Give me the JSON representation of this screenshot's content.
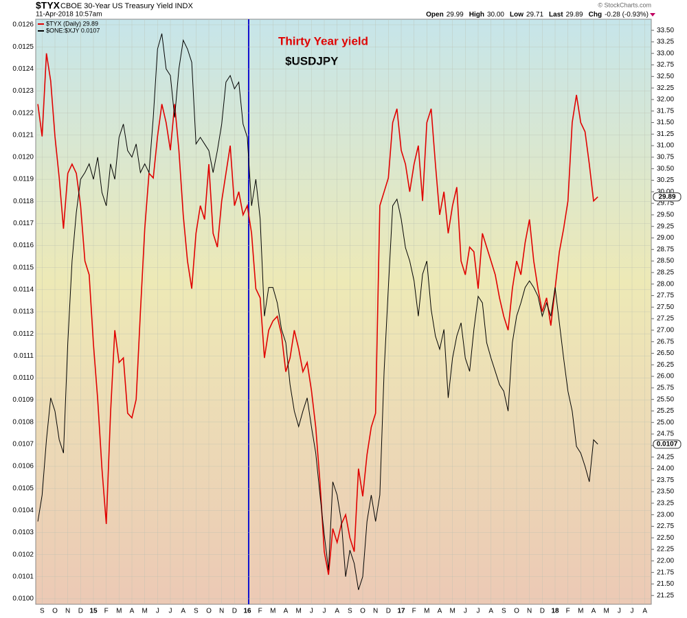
{
  "chart_data": {
    "type": "line",
    "symbol": "$TYX",
    "title": "CBOE 30-Year US Treasury Yield INDX",
    "date": "11-Apr-2018 10:57am",
    "source": "© StockCharts.com",
    "quote": [
      {
        "label": "Open",
        "value": "29.99"
      },
      {
        "label": "High",
        "value": "30.00"
      },
      {
        "label": "Low",
        "value": "29.71"
      },
      {
        "label": "Last",
        "value": "29.89"
      },
      {
        "label": "Chg",
        "value": "-0.28 (-0.93%)"
      }
    ],
    "annotations": [
      {
        "text": "Thirty Year yield",
        "color": "#e00000"
      },
      {
        "text": "$USDJPY",
        "color": "#000000"
      }
    ],
    "categories": [
      null,
      "S",
      null,
      null,
      "O",
      null,
      null,
      "N",
      null,
      null,
      "D",
      null,
      null,
      "15",
      null,
      null,
      "F",
      null,
      null,
      "M",
      null,
      null,
      "A",
      null,
      null,
      "M",
      null,
      null,
      "J",
      null,
      null,
      "J",
      null,
      null,
      "A",
      null,
      null,
      "S",
      null,
      null,
      "O",
      null,
      null,
      "N",
      null,
      null,
      "D",
      null,
      null,
      "16",
      null,
      null,
      "F",
      null,
      null,
      "M",
      null,
      null,
      "A",
      null,
      null,
      "M",
      null,
      null,
      "J",
      null,
      null,
      "J",
      null,
      null,
      "A",
      null,
      null,
      "S",
      null,
      null,
      "O",
      null,
      null,
      "N",
      null,
      null,
      "D",
      null,
      null,
      "17",
      null,
      null,
      "F",
      null,
      null,
      "M",
      null,
      null,
      "A",
      null,
      null,
      "M",
      null,
      null,
      "J",
      null,
      null,
      "J",
      null,
      null,
      "A",
      null,
      null,
      "S",
      null,
      null,
      "O",
      null,
      null,
      "N",
      null,
      null,
      "D",
      null,
      null,
      "18",
      null,
      null,
      "F",
      null,
      null,
      "M",
      null,
      null,
      "A",
      null,
      null,
      "M",
      null,
      null,
      "J",
      null,
      null,
      "J",
      null,
      null,
      "A",
      null
    ],
    "series": [
      {
        "name": "$TYX (Daily) 29.89",
        "color": "#e00000",
        "axis": "y2",
        "last_label": "29.89",
        "values": [
          31.9,
          31.2,
          33.0,
          32.4,
          31.2,
          30.3,
          29.2,
          30.4,
          30.6,
          30.4,
          29.7,
          28.5,
          28.2,
          26.7,
          25.5,
          24.0,
          22.8,
          25.2,
          27.0,
          26.3,
          26.4,
          25.2,
          25.1,
          25.5,
          27.4,
          29.2,
          30.4,
          30.3,
          31.2,
          31.9,
          31.5,
          30.9,
          31.9,
          30.9,
          29.5,
          28.5,
          27.9,
          29.1,
          29.7,
          29.4,
          30.6,
          29.1,
          28.8,
          29.8,
          30.4,
          31.0,
          29.7,
          30.0,
          29.5,
          29.7,
          29.1,
          27.9,
          27.7,
          26.4,
          27.0,
          27.2,
          27.3,
          26.9,
          26.1,
          26.4,
          27.0,
          26.6,
          26.1,
          26.3,
          25.7,
          24.9,
          23.7,
          22.2,
          21.7,
          22.7,
          22.4,
          22.8,
          23.0,
          22.5,
          22.2,
          24.0,
          23.4,
          24.3,
          24.9,
          25.2,
          29.7,
          30.0,
          30.3,
          31.5,
          31.8,
          30.9,
          30.6,
          30.0,
          30.6,
          31.0,
          29.8,
          31.5,
          31.8,
          30.6,
          29.5,
          30.0,
          29.1,
          29.7,
          30.1,
          28.5,
          28.2,
          28.8,
          28.7,
          27.9,
          29.1,
          28.8,
          28.5,
          28.2,
          27.7,
          27.3,
          27.0,
          27.9,
          28.5,
          28.2,
          28.9,
          29.4,
          28.5,
          27.9,
          27.4,
          27.7,
          27.1,
          27.9,
          28.7,
          29.2,
          29.8,
          31.5,
          32.1,
          31.5,
          31.3,
          30.6,
          29.8,
          29.89,
          null,
          null,
          null,
          null,
          null,
          null,
          null,
          null,
          null,
          null,
          null,
          null
        ]
      },
      {
        "name": "$ONE:$XJY 0.0107",
        "color": "#000000",
        "axis": "y",
        "last_label": "0.0107",
        "values": [
          0.01035,
          0.01047,
          0.01072,
          0.01091,
          0.01085,
          0.01072,
          0.01066,
          0.01116,
          0.01153,
          0.01175,
          0.0119,
          0.01193,
          0.01197,
          0.0119,
          0.012,
          0.01184,
          0.01178,
          0.01197,
          0.0119,
          0.01209,
          0.01215,
          0.01203,
          0.012,
          0.01206,
          0.01193,
          0.01197,
          0.01193,
          0.01218,
          0.01249,
          0.01256,
          0.0124,
          0.01237,
          0.01218,
          0.0124,
          0.01253,
          0.01249,
          0.01243,
          0.01206,
          0.01209,
          0.01206,
          0.01203,
          0.01193,
          0.01203,
          0.01215,
          0.01234,
          0.01237,
          0.01231,
          0.01234,
          0.01215,
          0.01209,
          0.01178,
          0.0119,
          0.01172,
          0.01128,
          0.01141,
          0.01141,
          0.01134,
          0.01122,
          0.01116,
          0.01097,
          0.01085,
          0.01078,
          0.01085,
          0.01091,
          0.01078,
          0.01066,
          0.01047,
          0.01029,
          0.01013,
          0.01053,
          0.01047,
          0.01035,
          0.0101,
          0.01022,
          0.01016,
          0.01004,
          0.0101,
          0.01035,
          0.01047,
          0.01035,
          0.01047,
          0.01103,
          0.01141,
          0.01178,
          0.01181,
          0.01172,
          0.01159,
          0.01153,
          0.01144,
          0.01128,
          0.01147,
          0.01153,
          0.01131,
          0.01119,
          0.01113,
          0.01122,
          0.01091,
          0.01109,
          0.01119,
          0.01125,
          0.01109,
          0.01103,
          0.01122,
          0.01137,
          0.01134,
          0.01116,
          0.01109,
          0.01103,
          0.01097,
          0.01094,
          0.01085,
          0.01116,
          0.01128,
          0.01134,
          0.01141,
          0.01144,
          0.01141,
          0.01137,
          0.01128,
          0.01134,
          0.01128,
          0.01141,
          0.01125,
          0.01109,
          0.01094,
          0.01085,
          0.01069,
          0.01066,
          0.0106,
          0.01053,
          0.01072,
          0.0107,
          null,
          null,
          null,
          null,
          null,
          null,
          null,
          null,
          null,
          null,
          null,
          null
        ]
      }
    ],
    "ylim": [
      0.009975,
      0.012625
    ],
    "yticks": [
      {
        "value": 0.01,
        "label": "0.0100"
      },
      {
        "value": 0.0101,
        "label": "0.0101"
      },
      {
        "value": 0.0102,
        "label": "0.0102"
      },
      {
        "value": 0.0103,
        "label": "0.0103"
      },
      {
        "value": 0.0104,
        "label": "0.0104"
      },
      {
        "value": 0.0105,
        "label": "0.0105"
      },
      {
        "value": 0.0106,
        "label": "0.0106"
      },
      {
        "value": 0.0107,
        "label": "0.0107"
      },
      {
        "value": 0.0108,
        "label": "0.0108"
      },
      {
        "value": 0.0109,
        "label": "0.0109"
      },
      {
        "value": 0.011,
        "label": "0.0110"
      },
      {
        "value": 0.0111,
        "label": "0.0111"
      },
      {
        "value": 0.0112,
        "label": "0.0112"
      },
      {
        "value": 0.0113,
        "label": "0.0113"
      },
      {
        "value": 0.0114,
        "label": "0.0114"
      },
      {
        "value": 0.0115,
        "label": "0.0115"
      },
      {
        "value": 0.0116,
        "label": "0.0116"
      },
      {
        "value": 0.0117,
        "label": "0.0117"
      },
      {
        "value": 0.0118,
        "label": "0.0118"
      },
      {
        "value": 0.0119,
        "label": "0.0119"
      },
      {
        "value": 0.012,
        "label": "0.0120"
      },
      {
        "value": 0.0121,
        "label": "0.0121"
      },
      {
        "value": 0.0122,
        "label": "0.0122"
      },
      {
        "value": 0.0123,
        "label": "0.0123"
      },
      {
        "value": 0.0124,
        "label": "0.0124"
      },
      {
        "value": 0.0125,
        "label": "0.0125"
      },
      {
        "value": 0.0126,
        "label": "0.0126"
      }
    ],
    "y2lim": [
      21.06,
      33.74
    ],
    "y2ticks": [
      21.25,
      {
        "value": 21.5,
        "label": "21.50"
      },
      21.75,
      {
        "value": 22,
        "label": "22.00"
      },
      22.25,
      {
        "value": 22.5,
        "label": "22.50"
      },
      22.75,
      {
        "value": 23,
        "label": "23.00"
      },
      23.25,
      {
        "value": 23.5,
        "label": "23.50"
      },
      23.75,
      {
        "value": 24,
        "label": "24.00"
      },
      24.25,
      {
        "value": 24.5,
        "label": "24.50"
      },
      24.75,
      {
        "value": 25,
        "label": "25.00"
      },
      25.25,
      {
        "value": 25.5,
        "label": "25.50"
      },
      25.75,
      {
        "value": 26,
        "label": "26.00"
      },
      26.25,
      {
        "value": 26.5,
        "label": "26.50"
      },
      26.75,
      {
        "value": 27,
        "label": "27.00"
      },
      27.25,
      {
        "value": 27.5,
        "label": "27.50"
      },
      27.75,
      {
        "value": 28,
        "label": "28.00"
      },
      28.25,
      {
        "value": 28.5,
        "label": "28.50"
      },
      28.75,
      {
        "value": 29,
        "label": "29.00"
      },
      29.25,
      {
        "value": 29.5,
        "label": "29.50"
      },
      29.75,
      {
        "value": 30,
        "label": "30.00"
      },
      30.25,
      {
        "value": 30.5,
        "label": "30.50"
      },
      30.75,
      {
        "value": 31,
        "label": "31.00"
      },
      31.25,
      {
        "value": 31.5,
        "label": "31.50"
      },
      31.75,
      {
        "value": 32,
        "label": "32.00"
      },
      32.25,
      {
        "value": 32.5,
        "label": "32.50"
      },
      32.75,
      {
        "value": 33,
        "label": "33.00"
      },
      33.25,
      {
        "value": 33.5,
        "label": "33.50"
      }
    ],
    "grid": true
  }
}
